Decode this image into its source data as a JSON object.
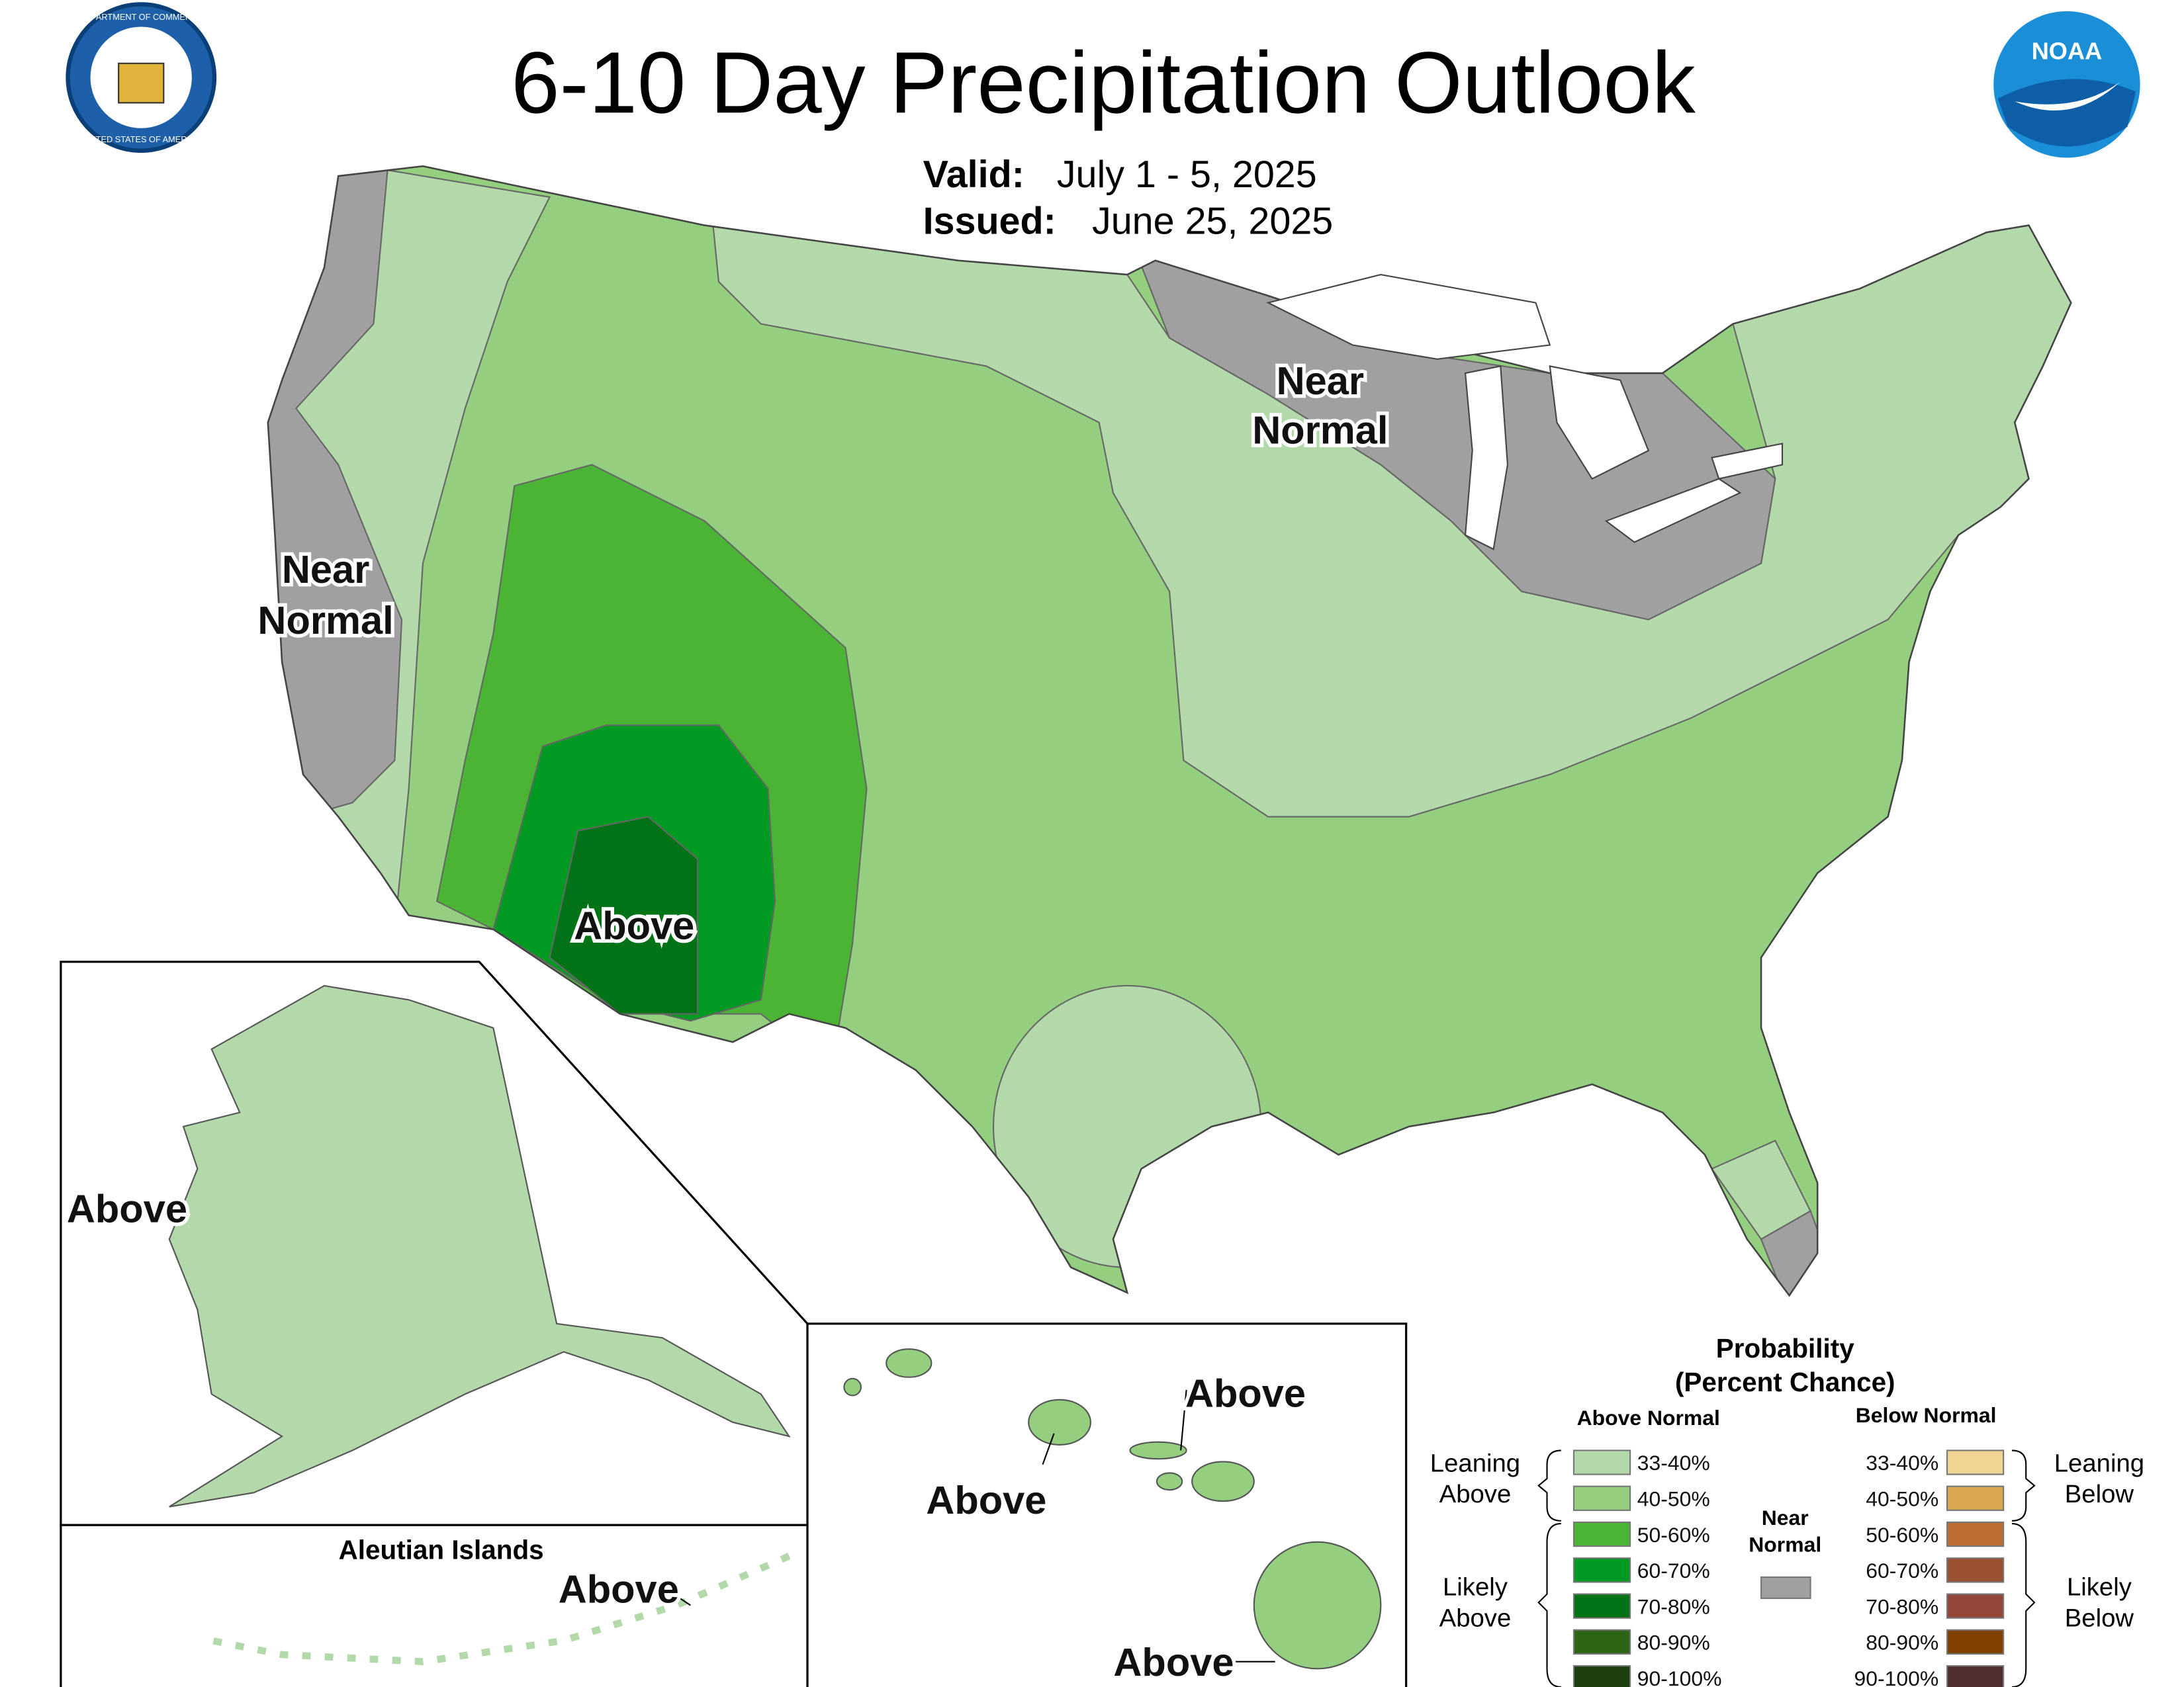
{
  "header": {
    "title": "6-10 Day Precipitation Outlook",
    "valid_label": "Valid:",
    "valid": "July 1 - 5, 2025",
    "issued_label": "Issued:",
    "issued": "June 25, 2025",
    "logo_left": [
      "DEPARTMENT OF COMMERCE",
      "UNITED STATES OF AMERICA"
    ],
    "logo_right": "NOAA"
  },
  "map_labels": [
    {
      "lines": [
        "Near",
        "Normal"
      ]
    },
    {
      "lines": [
        "Near",
        "Normal"
      ]
    },
    {
      "lines": [
        "Above"
      ]
    },
    {
      "lines": [
        "Above"
      ]
    },
    {
      "lines": [
        "Above"
      ]
    },
    {
      "lines": [
        "Above"
      ]
    },
    {
      "lines": [
        "Above"
      ]
    },
    {
      "lines": [
        "Above"
      ]
    }
  ],
  "insets": {
    "aleutian_title": "Aleutian Islands"
  },
  "legend": {
    "title": [
      "Probability",
      "(Percent Chance)"
    ],
    "above": {
      "heading": "Above Normal",
      "items": [
        {
          "label": "33-40%",
          "color": "#b3d9ab"
        },
        {
          "label": "40-50%",
          "color": "#94ce7f"
        },
        {
          "label": "50-60%",
          "color": "#4bb434"
        },
        {
          "label": "60-70%",
          "color": "#009a22"
        },
        {
          "label": "70-80%",
          "color": "#007316"
        },
        {
          "label": "80-90%",
          "color": "#2c6516"
        },
        {
          "label": "90-100%",
          "color": "#1c4010"
        }
      ]
    },
    "below": {
      "heading": "Below Normal",
      "items": [
        {
          "label": "33-40%",
          "color": "#f0d494"
        },
        {
          "label": "40-50%",
          "color": "#d8a750"
        },
        {
          "label": "50-60%",
          "color": "#bb6d33"
        },
        {
          "label": "60-70%",
          "color": "#9b5031"
        },
        {
          "label": "70-80%",
          "color": "#934639"
        },
        {
          "label": "80-90%",
          "color": "#804000"
        },
        {
          "label": "90-100%",
          "color": "#4f2f2f"
        }
      ]
    },
    "near": {
      "lines": [
        "Near",
        "Normal"
      ],
      "color": "#a0a0a0"
    },
    "groups": {
      "leaning_above": [
        "Leaning",
        "Above"
      ],
      "likely_above": [
        "Likely",
        "Above"
      ],
      "leaning_below": [
        "Leaning",
        "Below"
      ],
      "likely_below": [
        "Likely",
        "Below"
      ]
    }
  }
}
